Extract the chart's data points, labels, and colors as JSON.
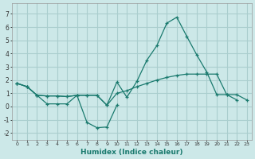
{
  "xlabel": "Humidex (Indice chaleur)",
  "background_color": "#cce8e8",
  "grid_color": "#aacece",
  "line_color": "#1a7a6e",
  "xlim": [
    -0.5,
    23.5
  ],
  "ylim": [
    -2.5,
    7.8
  ],
  "xticks": [
    0,
    1,
    2,
    3,
    4,
    5,
    6,
    7,
    8,
    9,
    10,
    11,
    12,
    13,
    14,
    15,
    16,
    17,
    18,
    19,
    20,
    21,
    22,
    23
  ],
  "yticks": [
    -2,
    -1,
    0,
    1,
    2,
    3,
    4,
    5,
    6,
    7
  ],
  "series1_x": [
    0,
    1,
    2,
    3,
    4,
    5,
    6,
    7,
    8,
    9,
    10,
    11,
    12,
    13,
    14,
    15,
    16,
    17,
    18,
    19,
    20,
    21,
    22
  ],
  "series1_y": [
    1.75,
    1.5,
    0.85,
    0.8,
    0.8,
    0.75,
    0.85,
    0.85,
    0.85,
    0.1,
    1.85,
    0.7,
    1.9,
    3.5,
    4.6,
    6.3,
    6.75,
    5.3,
    3.9,
    2.6,
    0.9,
    0.9,
    0.5
  ],
  "series2_x": [
    0,
    1,
    2,
    3,
    4,
    5,
    6,
    7,
    8,
    9,
    10,
    11,
    12,
    13,
    14,
    15,
    16,
    17,
    18,
    19,
    20,
    21,
    22,
    23
  ],
  "series2_y": [
    1.75,
    1.5,
    0.85,
    0.8,
    0.8,
    0.75,
    0.85,
    0.85,
    0.85,
    0.1,
    1.0,
    1.2,
    1.5,
    1.75,
    2.0,
    2.2,
    2.35,
    2.45,
    2.45,
    2.45,
    2.45,
    0.9,
    0.9,
    0.5
  ],
  "series3_x": [
    0,
    1,
    2,
    3,
    4,
    5,
    6,
    7,
    8,
    9,
    10
  ],
  "series3_y": [
    1.75,
    1.5,
    0.85,
    0.2,
    0.2,
    0.2,
    0.85,
    -1.2,
    -1.6,
    -1.55,
    0.1
  ]
}
